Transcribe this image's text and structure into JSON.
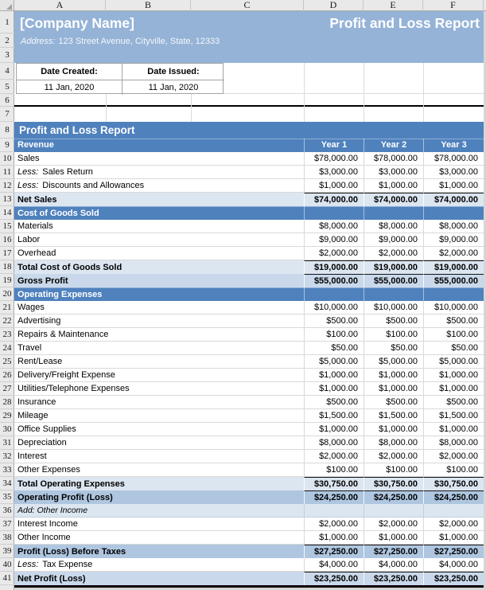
{
  "grid": {
    "column_headers": [
      "A",
      "B",
      "C",
      "D",
      "E",
      "F"
    ],
    "visible_rows": 41
  },
  "banner": {
    "company_name": "[Company Name]",
    "report_title": "Profit and Loss Report",
    "address_label": "Address:",
    "address_value": "123 Street Avenue, Cityville, State, 12333"
  },
  "dates": {
    "created_label": "Date Created:",
    "created_value": "11 Jan, 2020",
    "issued_label": "Date Issued:",
    "issued_value": "11 Jan, 2020"
  },
  "report": {
    "section_title": "Profit and Loss Report",
    "year_headers": [
      "Year 1",
      "Year 2",
      "Year 3"
    ],
    "rows": [
      {
        "n": 9,
        "type": "section",
        "label": "Revenue",
        "use_year_headers": true
      },
      {
        "n": 10,
        "type": "item",
        "label": "Sales",
        "values": [
          "$78,000.00",
          "$78,000.00",
          "$78,000.00"
        ]
      },
      {
        "n": 11,
        "type": "item",
        "prefix": "Less:",
        "label": "Sales Return",
        "values": [
          "$3,000.00",
          "$3,000.00",
          "$3,000.00"
        ]
      },
      {
        "n": 12,
        "type": "item",
        "prefix": "Less:",
        "label": "Discounts and Allowances",
        "values": [
          "$1,000.00",
          "$1,000.00",
          "$1,000.00"
        ]
      },
      {
        "n": 13,
        "type": "total",
        "tone": "light",
        "top_border": true,
        "label": "Net Sales",
        "values": [
          "$74,000.00",
          "$74,000.00",
          "$74,000.00"
        ]
      },
      {
        "n": 14,
        "type": "section",
        "label": "Cost of Goods Sold"
      },
      {
        "n": 15,
        "type": "item",
        "label": "Materials",
        "values": [
          "$8,000.00",
          "$8,000.00",
          "$8,000.00"
        ]
      },
      {
        "n": 16,
        "type": "item",
        "label": "Labor",
        "values": [
          "$9,000.00",
          "$9,000.00",
          "$9,000.00"
        ]
      },
      {
        "n": 17,
        "type": "item",
        "label": "Overhead",
        "values": [
          "$2,000.00",
          "$2,000.00",
          "$2,000.00"
        ]
      },
      {
        "n": 18,
        "type": "total",
        "tone": "light",
        "top_border": true,
        "label": "Total Cost of Goods Sold",
        "values": [
          "$19,000.00",
          "$19,000.00",
          "$19,000.00"
        ]
      },
      {
        "n": 19,
        "type": "total",
        "tone": "mid",
        "top_border": true,
        "label": "Gross Profit",
        "values": [
          "$55,000.00",
          "$55,000.00",
          "$55,000.00"
        ]
      },
      {
        "n": 20,
        "type": "section",
        "label": "Operating Expenses"
      },
      {
        "n": 21,
        "type": "item",
        "label": "Wages",
        "values": [
          "$10,000.00",
          "$10,000.00",
          "$10,000.00"
        ]
      },
      {
        "n": 22,
        "type": "item",
        "label": "Advertising",
        "values": [
          "$500.00",
          "$500.00",
          "$500.00"
        ]
      },
      {
        "n": 23,
        "type": "item",
        "label": "Repairs & Maintenance",
        "values": [
          "$100.00",
          "$100.00",
          "$100.00"
        ]
      },
      {
        "n": 24,
        "type": "item",
        "label": "Travel",
        "values": [
          "$50.00",
          "$50.00",
          "$50.00"
        ]
      },
      {
        "n": 25,
        "type": "item",
        "label": "Rent/Lease",
        "values": [
          "$5,000.00",
          "$5,000.00",
          "$5,000.00"
        ]
      },
      {
        "n": 26,
        "type": "item",
        "label": "Delivery/Freight Expense",
        "values": [
          "$1,000.00",
          "$1,000.00",
          "$1,000.00"
        ]
      },
      {
        "n": 27,
        "type": "item",
        "label": "Utilities/Telephone Expenses",
        "values": [
          "$1,000.00",
          "$1,000.00",
          "$1,000.00"
        ]
      },
      {
        "n": 28,
        "type": "item",
        "label": "Insurance",
        "values": [
          "$500.00",
          "$500.00",
          "$500.00"
        ]
      },
      {
        "n": 29,
        "type": "item",
        "label": "Mileage",
        "values": [
          "$1,500.00",
          "$1,500.00",
          "$1,500.00"
        ]
      },
      {
        "n": 30,
        "type": "item",
        "label": "Office Supplies",
        "values": [
          "$1,000.00",
          "$1,000.00",
          "$1,000.00"
        ]
      },
      {
        "n": 31,
        "type": "item",
        "label": "Depreciation",
        "values": [
          "$8,000.00",
          "$8,000.00",
          "$8,000.00"
        ]
      },
      {
        "n": 32,
        "type": "item",
        "label": "Interest",
        "values": [
          "$2,000.00",
          "$2,000.00",
          "$2,000.00"
        ]
      },
      {
        "n": 33,
        "type": "item",
        "label": "Other Expenses",
        "values": [
          "$100.00",
          "$100.00",
          "$100.00"
        ]
      },
      {
        "n": 34,
        "type": "total",
        "tone": "light",
        "top_border": true,
        "label": "Total Operating Expenses",
        "values": [
          "$30,750.00",
          "$30,750.00",
          "$30,750.00"
        ]
      },
      {
        "n": 35,
        "type": "total",
        "tone": "dark",
        "top_border": true,
        "label": "Operating Profit (Loss)",
        "values": [
          "$24,250.00",
          "$24,250.00",
          "$24,250.00"
        ]
      },
      {
        "n": 36,
        "type": "note",
        "label": "Add: Other Income"
      },
      {
        "n": 37,
        "type": "item",
        "label": "Interest Income",
        "values": [
          "$2,000.00",
          "$2,000.00",
          "$2,000.00"
        ]
      },
      {
        "n": 38,
        "type": "item",
        "label": "Other Income",
        "values": [
          "$1,000.00",
          "$1,000.00",
          "$1,000.00"
        ]
      },
      {
        "n": 39,
        "type": "total",
        "tone": "dark",
        "top_border": true,
        "label": "Profit (Loss) Before Taxes",
        "values": [
          "$27,250.00",
          "$27,250.00",
          "$27,250.00"
        ]
      },
      {
        "n": 40,
        "type": "item",
        "prefix": "Less:",
        "label": "Tax Expense",
        "values": [
          "$4,000.00",
          "$4,000.00",
          "$4,000.00"
        ]
      },
      {
        "n": 41,
        "type": "total",
        "tone": "mid",
        "top_border": true,
        "thick_bottom": true,
        "label": "Net Profit (Loss)",
        "values": [
          "$23,250.00",
          "$23,250.00",
          "$23,250.00"
        ]
      }
    ]
  },
  "colors": {
    "banner_blue": "#95B3D7",
    "section_blue": "#4F81BD",
    "total_light": "#DCE6F1",
    "total_mid": "#C9D8EA",
    "total_dark": "#AFC6E0"
  }
}
